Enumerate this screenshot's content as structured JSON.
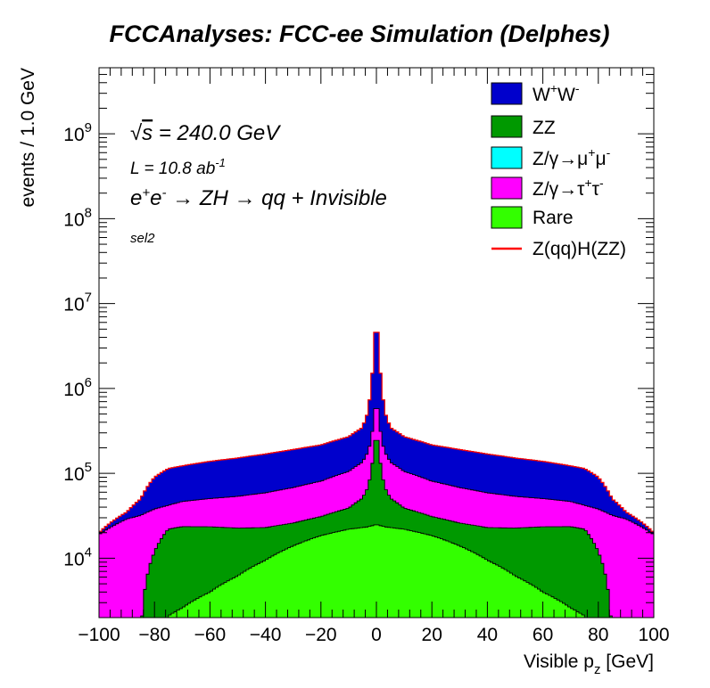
{
  "chart_data": {
    "type": "area",
    "stacked": true,
    "title": "FCCAnalyses: FCC-ee Simulation (Delphes)",
    "xlabel": "Visible p_z [GeV]",
    "ylabel": "events / 1.0 GeV",
    "xlim": [
      -100,
      100
    ],
    "ylim": [
      2000,
      6000000000
    ],
    "yscale": "log",
    "bin_width": 1.0,
    "x_ticks": [
      "−100",
      "−80",
      "−60",
      "−40",
      "−20",
      "0",
      "20",
      "40",
      "60",
      "80",
      "100"
    ],
    "y_tick_exponents": [
      "4",
      "5",
      "6",
      "7",
      "8",
      "9"
    ],
    "annotations": {
      "energy": "√s = 240.0 GeV",
      "lumi": "L = 10.8 ab⁻¹",
      "process": "e⁺e⁻ → ZH → qq + Invisible",
      "selection": "sel2"
    },
    "legend_position": "top-right",
    "legend": [
      {
        "label": "W⁺W⁻",
        "type": "fill",
        "color": "#0000cc"
      },
      {
        "label": "ZZ",
        "type": "fill",
        "color": "#009900"
      },
      {
        "label": "Z/γ→μ⁺μ⁻",
        "type": "fill",
        "color": "#00ffff"
      },
      {
        "label": "Z/γ→τ⁺τ⁻",
        "type": "fill",
        "color": "#ff00ff"
      },
      {
        "label": "Rare",
        "type": "fill",
        "color": "#33ff00"
      },
      {
        "label": "Z(qq)H(ZZ)",
        "type": "line",
        "color": "#ff0000"
      }
    ],
    "x": [
      -100,
      -90,
      -85,
      -80,
      -75,
      -70,
      -60,
      -50,
      -40,
      -30,
      -20,
      -10,
      -5,
      -3,
      -2,
      -1,
      0,
      1,
      2,
      3,
      5,
      10,
      20,
      30,
      40,
      50,
      60,
      70,
      75,
      80,
      85,
      90,
      100
    ],
    "series": [
      {
        "name": "Rare",
        "color": "#33ff00",
        "values": [
          0,
          0,
          0,
          0,
          2100,
          2600,
          4000,
          6200,
          9500,
          14000,
          18500,
          22000,
          23000,
          23500,
          24000,
          24500,
          25000,
          24500,
          24000,
          23500,
          23000,
          22000,
          18500,
          14000,
          9500,
          6200,
          4000,
          2600,
          2100,
          0,
          0,
          0,
          0
        ]
      },
      {
        "name": "ZZ",
        "color": "#009900",
        "values": [
          0,
          0,
          1000,
          12000,
          20000,
          21000,
          19500,
          16500,
          13500,
          12000,
          12500,
          17000,
          28000,
          45000,
          75000,
          140000,
          300000,
          140000,
          75000,
          45000,
          28000,
          17000,
          12500,
          12000,
          13500,
          16500,
          19500,
          21000,
          20000,
          12000,
          1000,
          0,
          0
        ]
      },
      {
        "name": "Z/γ→μ⁺μ⁻",
        "color": "#00ffff",
        "values": [
          0,
          0,
          0,
          0,
          0,
          0,
          0,
          0,
          0,
          0,
          0,
          0,
          0,
          0,
          0,
          0,
          0,
          0,
          0,
          0,
          0,
          0,
          0,
          0,
          0,
          0,
          0,
          0,
          0,
          0,
          0,
          0,
          0
        ]
      },
      {
        "name": "Z/γ→τ⁺τ⁻",
        "color": "#ff00ff",
        "values": [
          19000,
          29000,
          31000,
          26000,
          20000,
          23000,
          27000,
          31000,
          36000,
          42000,
          50000,
          66000,
          85000,
          110000,
          140000,
          220000,
          450000,
          220000,
          140000,
          110000,
          85000,
          66000,
          50000,
          42000,
          36000,
          31000,
          27000,
          23000,
          20000,
          26000,
          31000,
          29000,
          19000
        ]
      },
      {
        "name": "W⁺W⁻",
        "color": "#0000cc",
        "values": [
          1000,
          6000,
          18000,
          52000,
          72000,
          76000,
          88000,
          98000,
          110000,
          123000,
          135000,
          165000,
          210000,
          350000,
          700000,
          1700000,
          6300000,
          1700000,
          700000,
          350000,
          210000,
          165000,
          135000,
          123000,
          110000,
          98000,
          88000,
          76000,
          72000,
          52000,
          18000,
          6000,
          1000
        ]
      }
    ],
    "signal": {
      "name": "Z(qq)H(ZZ)",
      "color": "#ff0000",
      "style": "line on top of stack"
    }
  }
}
